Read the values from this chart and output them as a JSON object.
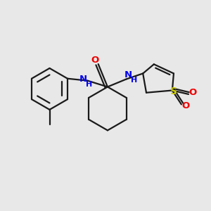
{
  "background_color": "#e8e8e8",
  "bond_color": "#1a1a1a",
  "N_color": "#0000ee",
  "O_color": "#ee0000",
  "S_color": "#cccc00",
  "line_width": 1.6,
  "figsize": [
    3.0,
    3.0
  ],
  "dpi": 100,
  "xlim": [
    0,
    10
  ],
  "ylim": [
    0,
    10
  ]
}
